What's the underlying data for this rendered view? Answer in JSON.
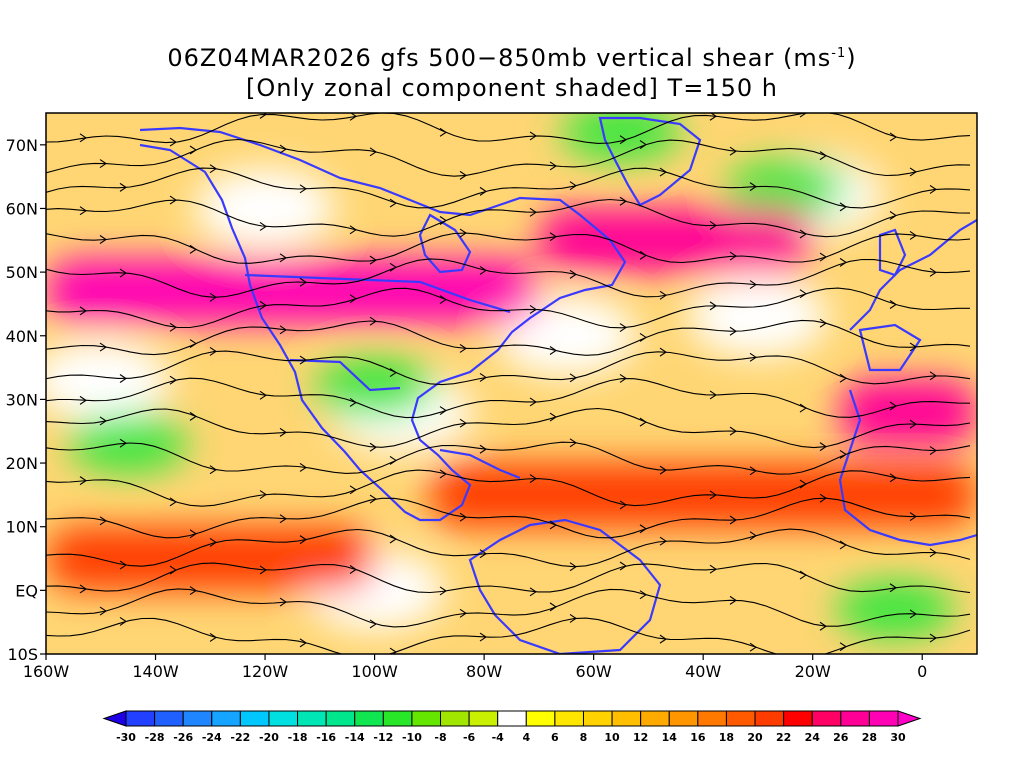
{
  "title": {
    "line1_pre": "06Z04MAR2026 gfs 500−850mb vertical shear (ms",
    "line1_sup": "-1",
    "line1_post": ")",
    "line2": "[Only zonal component shaded] T=150 h"
  },
  "map": {
    "lon_range": [
      -160,
      10
    ],
    "lat_range": [
      -10,
      75
    ],
    "x_ticks": [
      {
        "lon": -160,
        "label": "160W"
      },
      {
        "lon": -140,
        "label": "140W"
      },
      {
        "lon": -120,
        "label": "120W"
      },
      {
        "lon": -100,
        "label": "100W"
      },
      {
        "lon": -80,
        "label": "80W"
      },
      {
        "lon": -60,
        "label": "60W"
      },
      {
        "lon": -40,
        "label": "40W"
      },
      {
        "lon": -20,
        "label": "20W"
      },
      {
        "lon": 0,
        "label": "0"
      }
    ],
    "y_ticks": [
      {
        "lat": -10,
        "label": "10S"
      },
      {
        "lat": 0,
        "label": "EQ"
      },
      {
        "lat": 10,
        "label": "10N"
      },
      {
        "lat": 20,
        "label": "20N"
      },
      {
        "lat": 30,
        "label": "30N"
      },
      {
        "lat": 40,
        "label": "40N"
      },
      {
        "lat": 50,
        "label": "50N"
      },
      {
        "lat": 60,
        "label": "60N"
      },
      {
        "lat": 70,
        "label": "70N"
      }
    ],
    "field_bands": [
      {
        "lat": 47,
        "lon_from": -160,
        "lon_to": -70,
        "value": 28
      },
      {
        "lat": 55,
        "lon_from": -70,
        "lon_to": -20,
        "value": 26
      },
      {
        "lat": 5,
        "lon_from": -160,
        "lon_to": -100,
        "value": 20
      },
      {
        "lat": 15,
        "lon_from": -90,
        "lon_to": 10,
        "value": 20
      },
      {
        "lat": 28,
        "lon_from": -15,
        "lon_to": 10,
        "value": 26
      }
    ],
    "land_outline_color": "#3a3aff",
    "streamline_color": "#000000"
  },
  "colorbar": {
    "colors": [
      "#1f00e6",
      "#2240ff",
      "#2060ff",
      "#1f86ff",
      "#15a4ff",
      "#00c8ff",
      "#00e0e0",
      "#00e6b4",
      "#00e68c",
      "#10e650",
      "#28e628",
      "#64e600",
      "#a0e600",
      "#c8f000",
      "#ffffff",
      "#ffff00",
      "#ffe600",
      "#ffd200",
      "#ffbe00",
      "#ffaa00",
      "#ff9600",
      "#ff7800",
      "#ff5a00",
      "#ff3c00",
      "#ff0000",
      "#ff0064",
      "#ff0096",
      "#ff00b4",
      "#ff00c8"
    ],
    "labels": [
      "-30",
      "-28",
      "-26",
      "-24",
      "-22",
      "-20",
      "-18",
      "-16",
      "-14",
      "-12",
      "-10",
      "-8",
      "-6",
      "-4",
      "4",
      "6",
      "8",
      "10",
      "12",
      "14",
      "16",
      "18",
      "20",
      "22",
      "24",
      "26",
      "28",
      "30"
    ]
  }
}
